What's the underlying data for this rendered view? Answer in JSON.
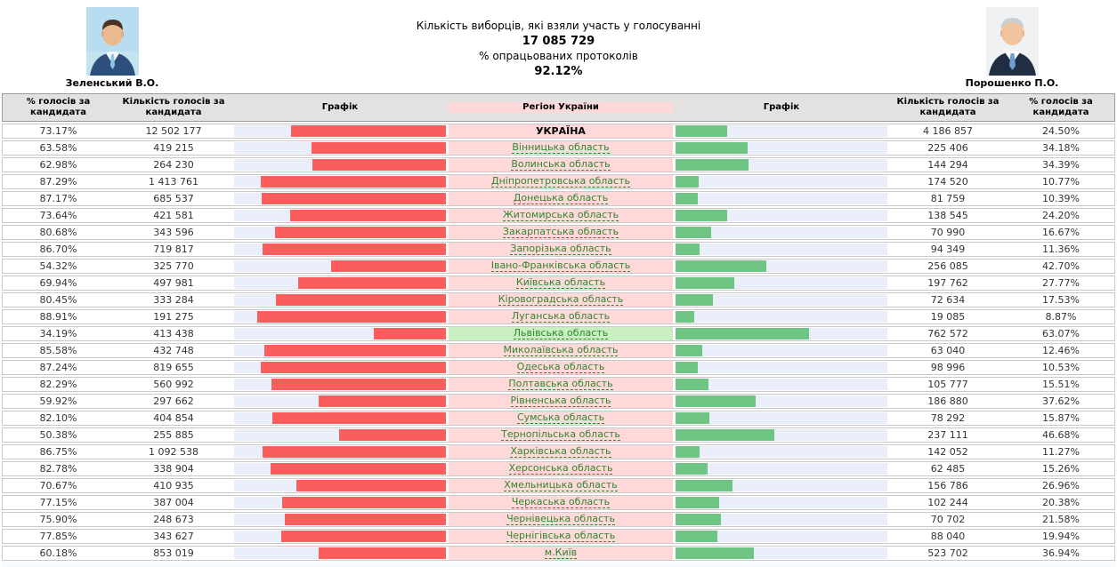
{
  "header": {
    "candidate_left": {
      "name": "Зеленський В.О."
    },
    "candidate_right": {
      "name": "Порошенко П.О."
    },
    "center": {
      "turnout_label": "Кількість виборців, які взяли участь у голосуванні",
      "turnout_value": "17 085 729",
      "protocols_label": "% опрацьованих протоколів",
      "protocols_value": "92.12%"
    }
  },
  "colors": {
    "zelensky_bar": "#fb5d5d",
    "poroshenko_bar": "#6ec584",
    "bar_track": "#e9eefa",
    "region_cell": "#ffd9d9",
    "region_highlight": "#c9eec1"
  },
  "table": {
    "columns": [
      "% голосів за кандидата",
      "Кількість голосів за кандидата",
      "Графік",
      "Регіон України",
      "Графік",
      "Кількість голосів за кандидата",
      "% голосів за кандидата"
    ],
    "rows": [
      {
        "region": "УКРАЇНА",
        "is_total": true,
        "highlight": false,
        "left_pct": "73.17%",
        "left_votes": "12 502 177",
        "right_votes": "4 186 857",
        "right_pct": "24.50%"
      },
      {
        "region": "Вінницька область",
        "is_total": false,
        "highlight": false,
        "left_pct": "63.58%",
        "left_votes": "419 215",
        "right_votes": "225 406",
        "right_pct": "34.18%"
      },
      {
        "region": "Волинська область",
        "is_total": false,
        "highlight": false,
        "left_pct": "62.98%",
        "left_votes": "264 230",
        "right_votes": "144 294",
        "right_pct": "34.39%"
      },
      {
        "region": "Дніпропетровська область",
        "is_total": false,
        "highlight": false,
        "left_pct": "87.29%",
        "left_votes": "1 413 761",
        "right_votes": "174 520",
        "right_pct": "10.77%"
      },
      {
        "region": "Донецька область",
        "is_total": false,
        "highlight": false,
        "left_pct": "87.17%",
        "left_votes": "685 537",
        "right_votes": "81 759",
        "right_pct": "10.39%"
      },
      {
        "region": "Житомирська область",
        "is_total": false,
        "highlight": false,
        "left_pct": "73.64%",
        "left_votes": "421 581",
        "right_votes": "138 545",
        "right_pct": "24.20%"
      },
      {
        "region": "Закарпатська область",
        "is_total": false,
        "highlight": false,
        "left_pct": "80.68%",
        "left_votes": "343 596",
        "right_votes": "70 990",
        "right_pct": "16.67%"
      },
      {
        "region": "Запорізька область",
        "is_total": false,
        "highlight": false,
        "left_pct": "86.70%",
        "left_votes": "719 817",
        "right_votes": "94 349",
        "right_pct": "11.36%"
      },
      {
        "region": "Івано-Франківська область",
        "is_total": false,
        "highlight": false,
        "left_pct": "54.32%",
        "left_votes": "325 770",
        "right_votes": "256 085",
        "right_pct": "42.70%"
      },
      {
        "region": "Київська область",
        "is_total": false,
        "highlight": false,
        "left_pct": "69.94%",
        "left_votes": "497 981",
        "right_votes": "197 762",
        "right_pct": "27.77%"
      },
      {
        "region": "Кіровоградська область",
        "is_total": false,
        "highlight": false,
        "left_pct": "80.45%",
        "left_votes": "333 284",
        "right_votes": "72 634",
        "right_pct": "17.53%"
      },
      {
        "region": "Луганська область",
        "is_total": false,
        "highlight": false,
        "left_pct": "88.91%",
        "left_votes": "191 275",
        "right_votes": "19 085",
        "right_pct": "8.87%"
      },
      {
        "region": "Львівська область",
        "is_total": false,
        "highlight": true,
        "left_pct": "34.19%",
        "left_votes": "413 438",
        "right_votes": "762 572",
        "right_pct": "63.07%"
      },
      {
        "region": "Миколаївська область",
        "is_total": false,
        "highlight": false,
        "left_pct": "85.58%",
        "left_votes": "432 748",
        "right_votes": "63 040",
        "right_pct": "12.46%"
      },
      {
        "region": "Одеська область",
        "is_total": false,
        "highlight": false,
        "left_pct": "87.24%",
        "left_votes": "819 655",
        "right_votes": "98 996",
        "right_pct": "10.53%"
      },
      {
        "region": "Полтавська область",
        "is_total": false,
        "highlight": false,
        "left_pct": "82.29%",
        "left_votes": "560 992",
        "right_votes": "105 777",
        "right_pct": "15.51%"
      },
      {
        "region": "Рівненська область",
        "is_total": false,
        "highlight": false,
        "left_pct": "59.92%",
        "left_votes": "297 662",
        "right_votes": "186 880",
        "right_pct": "37.62%"
      },
      {
        "region": "Сумська область",
        "is_total": false,
        "highlight": false,
        "left_pct": "82.10%",
        "left_votes": "404 854",
        "right_votes": "78 292",
        "right_pct": "15.87%"
      },
      {
        "region": "Тернопільська область",
        "is_total": false,
        "highlight": false,
        "left_pct": "50.38%",
        "left_votes": "255 885",
        "right_votes": "237 111",
        "right_pct": "46.68%"
      },
      {
        "region": "Харківська область",
        "is_total": false,
        "highlight": false,
        "left_pct": "86.75%",
        "left_votes": "1 092 538",
        "right_votes": "142 052",
        "right_pct": "11.27%"
      },
      {
        "region": "Херсонська область",
        "is_total": false,
        "highlight": false,
        "left_pct": "82.78%",
        "left_votes": "338 904",
        "right_votes": "62 485",
        "right_pct": "15.26%"
      },
      {
        "region": "Хмельницька область",
        "is_total": false,
        "highlight": false,
        "left_pct": "70.67%",
        "left_votes": "410 935",
        "right_votes": "156 786",
        "right_pct": "26.96%"
      },
      {
        "region": "Черкаська область",
        "is_total": false,
        "highlight": false,
        "left_pct": "77.15%",
        "left_votes": "387 004",
        "right_votes": "102 244",
        "right_pct": "20.38%"
      },
      {
        "region": "Чернівецька область",
        "is_total": false,
        "highlight": false,
        "left_pct": "75.90%",
        "left_votes": "248 673",
        "right_votes": "70 702",
        "right_pct": "21.58%"
      },
      {
        "region": "Чернігівська область",
        "is_total": false,
        "highlight": false,
        "left_pct": "77.85%",
        "left_votes": "343 627",
        "right_votes": "88 040",
        "right_pct": "19.94%"
      },
      {
        "region": "м.Київ",
        "is_total": false,
        "highlight": false,
        "left_pct": "60.18%",
        "left_votes": "853 019",
        "right_votes": "523 702",
        "right_pct": "36.94%"
      }
    ]
  }
}
